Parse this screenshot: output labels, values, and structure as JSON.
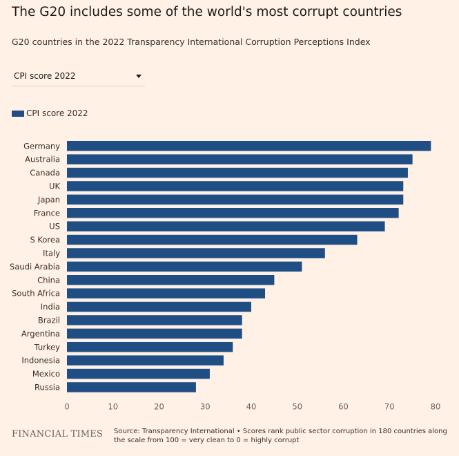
{
  "header": {
    "title": "The G20 includes some of the world's most corrupt countries",
    "subtitle": "G20 countries in the 2022 Transparency International Corruption Perceptions Index"
  },
  "controls": {
    "dropdown_value": "CPI score 2022"
  },
  "colors": {
    "bar": "#1f4e85",
    "background": "#fff1e5"
  },
  "chart_data": {
    "type": "bar",
    "orientation": "horizontal",
    "title": "The G20 includes some of the world's most corrupt countries",
    "subtitle": "G20 countries in the 2022 Transparency International Corruption Perceptions Index",
    "categories": [
      "Germany",
      "Australia",
      "Canada",
      "UK",
      "Japan",
      "France",
      "US",
      "S Korea",
      "Italy",
      "Saudi Arabia",
      "China",
      "South Africa",
      "India",
      "Brazil",
      "Argentina",
      "Turkey",
      "Indonesia",
      "Mexico",
      "Russia"
    ],
    "series": [
      {
        "name": "CPI score 2022",
        "values": [
          79,
          75,
          74,
          73,
          73,
          72,
          69,
          63,
          56,
          51,
          45,
          43,
          40,
          38,
          38,
          36,
          34,
          31,
          28
        ]
      }
    ],
    "xticks": [
      0,
      10,
      20,
      30,
      40,
      50,
      60,
      70,
      80
    ],
    "xlim": [
      0,
      80
    ],
    "xlabel": "",
    "ylabel": "",
    "grid": false,
    "legend": "top-left"
  },
  "footer": {
    "logo_text": "FINANCIAL TIMES",
    "source_text": "Source: Transparency International • Scores rank public sector corruption in 180 countries along the scale from 100 = very clean to 0 = highly corrupt"
  }
}
